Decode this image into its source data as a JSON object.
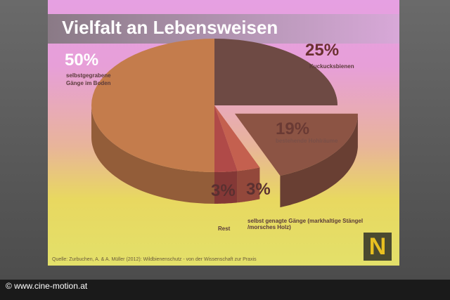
{
  "chart_data": {
    "type": "pie",
    "title": "Vielfalt an Lebensweisen",
    "categories": [
      "Kuckucksbienen",
      "bestehende Hohlräume",
      "selbst genagte Gänge (markhaltige Stängel /morsches Holz)",
      "Rest",
      "selbstgegrabene Gänge im Boden"
    ],
    "values": [
      25,
      19,
      3,
      3,
      50
    ],
    "value_labels": [
      "25%",
      "19%",
      "3%",
      "3%",
      "50%"
    ],
    "colors": [
      "#6e4a44",
      "#8c5444",
      "#c4604f",
      "#b04a48",
      "#c47c4c"
    ],
    "source": "Quelle: Zurbuchen, A. & A. Müller (2012): Wildbienenschutz - von der Wissenschaft zur Praxis"
  },
  "watermark": "© www.cine-motion.at"
}
